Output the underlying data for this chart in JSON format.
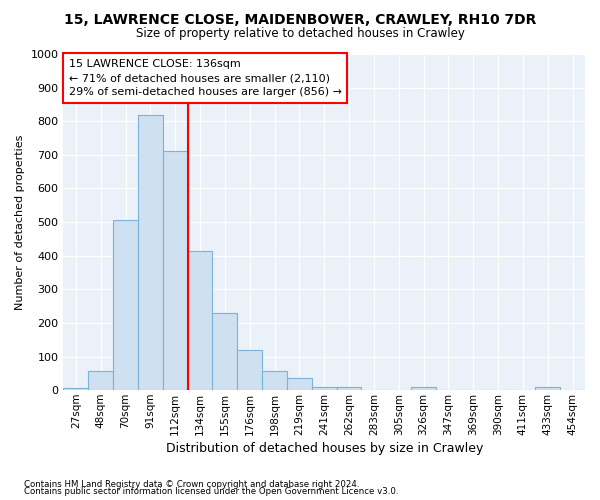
{
  "title1": "15, LAWRENCE CLOSE, MAIDENBOWER, CRAWLEY, RH10 7DR",
  "title2": "Size of property relative to detached houses in Crawley",
  "xlabel": "Distribution of detached houses by size in Crawley",
  "ylabel": "Number of detached properties",
  "annotation_line1": "15 LAWRENCE CLOSE: 136sqm",
  "annotation_line2": "← 71% of detached houses are smaller (2,110)",
  "annotation_line3": "29% of semi-detached houses are larger (856) →",
  "categories": [
    "27sqm",
    "48sqm",
    "70sqm",
    "91sqm",
    "112sqm",
    "134sqm",
    "155sqm",
    "176sqm",
    "198sqm",
    "219sqm",
    "241sqm",
    "262sqm",
    "283sqm",
    "305sqm",
    "326sqm",
    "347sqm",
    "369sqm",
    "390sqm",
    "411sqm",
    "433sqm",
    "454sqm"
  ],
  "values": [
    7,
    57,
    505,
    820,
    710,
    415,
    230,
    120,
    57,
    35,
    10,
    10,
    0,
    0,
    10,
    0,
    0,
    0,
    0,
    10,
    0
  ],
  "bar_color": "#cfe0f0",
  "bar_edge_color": "#7bb3d8",
  "marker_color": "red",
  "bg_color": "#eaf1f8",
  "grid_color": "white",
  "ylim": [
    0,
    1000
  ],
  "yticks": [
    0,
    100,
    200,
    300,
    400,
    500,
    600,
    700,
    800,
    900,
    1000
  ],
  "footnote1": "Contains HM Land Registry data © Crown copyright and database right 2024.",
  "footnote2": "Contains public sector information licensed under the Open Government Licence v3.0."
}
